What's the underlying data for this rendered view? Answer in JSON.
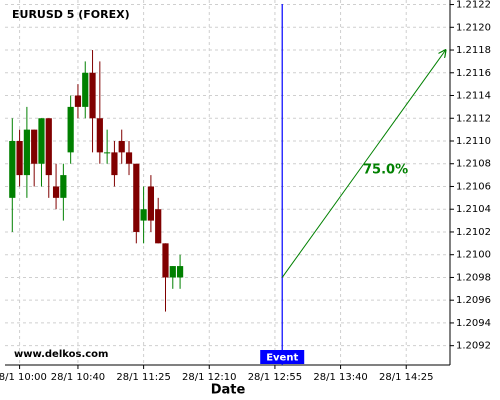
{
  "chart_data": {
    "type": "candlestick",
    "title": "EURUSD 5 (FOREX)",
    "x_label": "Date",
    "watermark": "www.delkos.com",
    "x": [
      595,
      600,
      605,
      610,
      615,
      620,
      625,
      630,
      635,
      640,
      645,
      650,
      655,
      660,
      665,
      670,
      675,
      680,
      685,
      690,
      695,
      700,
      705,
      710
    ],
    "open": [
      1.2105,
      1.211,
      1.2107,
      1.2111,
      1.2108,
      1.2112,
      1.2106,
      1.2105,
      1.2109,
      1.2114,
      1.2113,
      1.2116,
      1.2112,
      1.2109,
      1.2109,
      1.211,
      1.2109,
      1.2108,
      1.2103,
      1.2106,
      1.2104,
      1.2101,
      1.2098,
      1.2098
    ],
    "high": [
      1.2112,
      1.2111,
      1.2113,
      1.2111,
      1.2112,
      1.2112,
      1.2108,
      1.2108,
      1.2114,
      1.2115,
      1.2117,
      1.2118,
      1.2117,
      1.2111,
      1.211,
      1.2111,
      1.211,
      1.2108,
      1.2106,
      1.2107,
      1.2105,
      1.2101,
      1.2099,
      1.21
    ],
    "low": [
      1.2102,
      1.2106,
      1.2105,
      1.2106,
      1.2106,
      1.2105,
      1.2104,
      1.2103,
      1.2108,
      1.2112,
      1.2112,
      1.2109,
      1.2108,
      1.2108,
      1.2106,
      1.2108,
      1.2107,
      1.2101,
      1.2101,
      1.2102,
      1.2101,
      1.2095,
      1.2097,
      1.2097
    ],
    "close": [
      1.211,
      1.2107,
      1.2111,
      1.2108,
      1.2112,
      1.2107,
      1.2105,
      1.2107,
      1.2113,
      1.2113,
      1.2116,
      1.2112,
      1.2109,
      1.2109,
      1.2107,
      1.2109,
      1.2108,
      1.2102,
      1.2104,
      1.2103,
      1.2101,
      1.2098,
      1.2099,
      1.2099
    ],
    "up_color": "#008000",
    "down_color": "#800000",
    "xlim": [
      590,
      895
    ],
    "xticks": [
      {
        "value": 600,
        "label": "28/1 10:00"
      },
      {
        "value": 640,
        "label": "28/1 10:40"
      },
      {
        "value": 685,
        "label": "28/1 11:25"
      },
      {
        "value": 730,
        "label": "28/1 12:10"
      },
      {
        "value": 775,
        "label": "28/1 12:55"
      },
      {
        "value": 820,
        "label": "28/1 13:40"
      },
      {
        "value": 865,
        "label": "28/1 14:25"
      }
    ],
    "ylim": [
      1.20903,
      1.21224
    ],
    "yticks": [
      1.2092,
      1.2094,
      1.2096,
      1.2098,
      {
        "value": 1.21,
        "label": "1.2100"
      },
      1.2102,
      1.2104,
      1.2106,
      1.2108,
      {
        "value": 1.211,
        "label": "1.2110"
      },
      1.2112,
      1.2114,
      1.2116,
      1.2118,
      {
        "value": 1.212,
        "label": "1.2120"
      },
      1.2122
    ],
    "grid": true,
    "event": {
      "x": 780,
      "label": "Event",
      "color": "#0000ff"
    },
    "prediction": {
      "x": [
        780,
        892
      ],
      "y": [
        1.2098,
        1.2118
      ],
      "label": "75.0%",
      "color": "#008000"
    }
  }
}
